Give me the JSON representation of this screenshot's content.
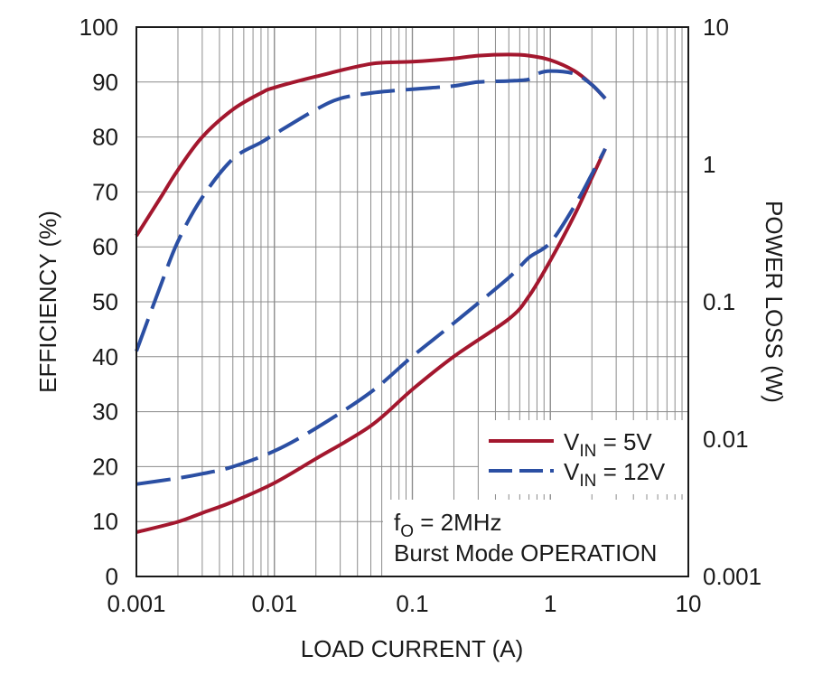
{
  "chart_data": {
    "type": "line",
    "xlabel": "LOAD CURRENT (A)",
    "ylabel": "EFFICIENCY (%)",
    "y2label": "POWER LOSS (W)",
    "x_scale": "log",
    "x_range": [
      0.001,
      10
    ],
    "x_ticks": [
      "0.001",
      "0.01",
      "0.1",
      "1",
      "10"
    ],
    "y_range": [
      0,
      100
    ],
    "y_ticks": [
      "0",
      "10",
      "20",
      "30",
      "40",
      "50",
      "60",
      "70",
      "80",
      "90",
      "100"
    ],
    "y2_scale": "log",
    "y2_range": [
      0.001,
      10
    ],
    "y2_ticks": [
      "0.001",
      "0.01",
      "0.1",
      "1",
      "10"
    ],
    "grid": true,
    "legend_position": "bottom-right",
    "legend": [
      {
        "main": "V",
        "sub": "IN",
        "rest": " = 5V",
        "color": "#a3172e",
        "dash": "solid"
      },
      {
        "main": "V",
        "sub": "IN",
        "rest": " = 12V",
        "color": "#2b4fa3",
        "dash": "dashed"
      }
    ],
    "note": {
      "line1_main": "f",
      "line1_sub": "O",
      "line1_rest": " = 2MHz",
      "line2": "Burst Mode OPERATION"
    },
    "series": [
      {
        "name": "VIN = 5V",
        "axis": "left",
        "color": "#a3172e",
        "dash": "solid",
        "x": [
          0.001,
          0.0015,
          0.002,
          0.003,
          0.005,
          0.008,
          0.01,
          0.02,
          0.05,
          0.1,
          0.2,
          0.3,
          0.5,
          0.7,
          1,
          1.5,
          2,
          2.5
        ],
        "y": [
          62,
          69,
          74,
          80,
          85,
          88,
          89,
          91,
          93.3,
          93.7,
          94.3,
          94.8,
          95,
          94.8,
          94,
          92,
          89.5,
          87
        ]
      },
      {
        "name": "VIN = 12V",
        "axis": "left",
        "color": "#2b4fa3",
        "dash": "dashed",
        "x": [
          0.001,
          0.0015,
          0.002,
          0.003,
          0.005,
          0.008,
          0.01,
          0.02,
          0.03,
          0.05,
          0.1,
          0.2,
          0.3,
          0.5,
          0.7,
          0.8,
          1,
          1.5,
          2,
          2.5
        ],
        "y": [
          41,
          53,
          61,
          69,
          76,
          79,
          80.5,
          85,
          87,
          88,
          88.7,
          89.3,
          90,
          90.2,
          90.5,
          91.5,
          92,
          91.5,
          89.5,
          87
        ]
      },
      {
        "name": "VIN = 5V",
        "axis": "right",
        "color": "#a3172e",
        "dash": "solid",
        "x": [
          0.001,
          0.002,
          0.003,
          0.005,
          0.01,
          0.02,
          0.05,
          0.1,
          0.2,
          0.5,
          0.7,
          1,
          1.5,
          2,
          2.5
        ],
        "y": [
          0.0021,
          0.0025,
          0.0029,
          0.0035,
          0.0048,
          0.0072,
          0.0125,
          0.023,
          0.04,
          0.075,
          0.11,
          0.2,
          0.43,
          0.8,
          1.3
        ]
      },
      {
        "name": "VIN = 12V",
        "axis": "right",
        "color": "#2b4fa3",
        "dash": "dashed",
        "x": [
          0.001,
          0.002,
          0.003,
          0.005,
          0.01,
          0.02,
          0.05,
          0.1,
          0.2,
          0.5,
          0.7,
          1,
          1.5,
          2,
          2.5
        ],
        "y": [
          0.0047,
          0.0052,
          0.0056,
          0.0063,
          0.0082,
          0.012,
          0.022,
          0.04,
          0.07,
          0.15,
          0.21,
          0.27,
          0.5,
          0.85,
          1.3
        ]
      }
    ]
  }
}
